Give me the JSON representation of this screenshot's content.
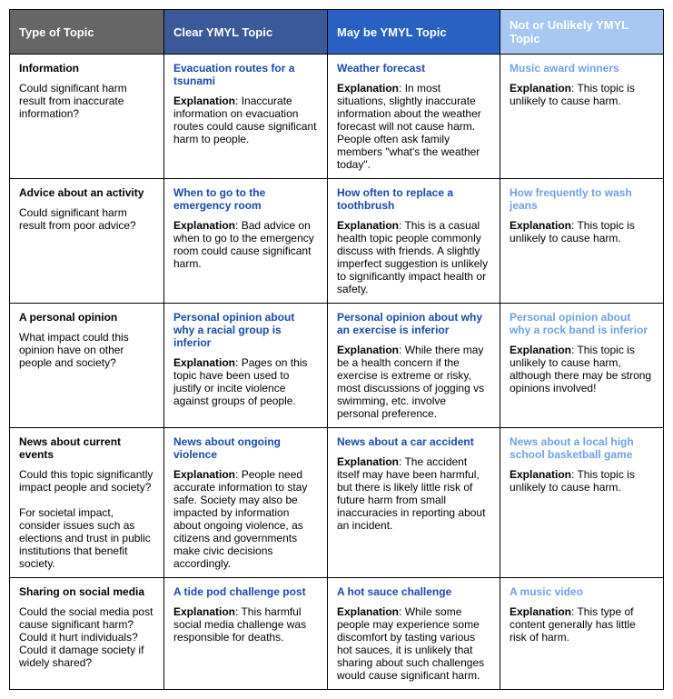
{
  "headers": {
    "col0": "Type of Topic",
    "col1": "Clear YMYL Topic",
    "col2": "May be YMYL Topic",
    "col3": "Not or Unlikely YMYL Topic"
  },
  "explanation_label": "Explanation",
  "rows": [
    {
      "type_title": "Information",
      "type_desc": "Could significant harm result from inaccurate information?",
      "clear": {
        "title": "Evacuation routes for a tsunami",
        "explanation": "Inaccurate information on evacuation routes could cause significant harm to people."
      },
      "maybe": {
        "title": "Weather forecast",
        "explanation": "In most situations, slightly inaccurate information about the weather forecast will not cause harm. People often ask family members \"what's the weather today\"."
      },
      "not": {
        "title": "Music award winners",
        "explanation": "This topic is unlikely to cause harm."
      }
    },
    {
      "type_title": "Advice about an activity",
      "type_desc": "Could significant harm result from poor advice?",
      "clear": {
        "title": "When to go to the emergency room",
        "explanation": "Bad advice on when to go to the emergency room could cause significant harm."
      },
      "maybe": {
        "title": "How often to replace a toothbrush",
        "explanation": "This is a casual health topic people commonly discuss with friends.  A slightly imperfect suggestion is unlikely to significantly impact health or safety."
      },
      "not": {
        "title": "How frequently to wash jeans",
        "explanation": "This topic is unlikely to cause harm."
      }
    },
    {
      "type_title": "A personal opinion",
      "type_desc": "What impact could this opinion have on other people and society?",
      "clear": {
        "title": "Personal opinion about why a racial group is inferior",
        "explanation": "Pages on this topic have been used to justify or incite violence against groups of people."
      },
      "maybe": {
        "title": "Personal opinion about why an exercise is inferior",
        "explanation": "While there may be a health concern if the exercise is extreme or risky, most discussions of jogging vs swimming, etc. involve personal preference."
      },
      "not": {
        "title": "Personal opinion about why a rock band is inferior",
        "explanation": "This topic is unlikely to cause harm, although there may be strong opinions involved!"
      }
    },
    {
      "type_title": "News about current events",
      "type_desc": "Could this topic significantly impact people and society?\n\nFor societal impact, consider issues such as elections and trust in public institutions that benefit society.",
      "clear": {
        "title": "News about ongoing violence",
        "explanation": "People need accurate information to stay safe. Society may also be impacted by information about ongoing violence, as citizens and governments make civic decisions accordingly."
      },
      "maybe": {
        "title": "News about a car accident",
        "explanation": "The accident itself may have been harmful, but there is likely little risk of future harm from small inaccuracies in reporting about an incident."
      },
      "not": {
        "title": "News about a local high school basketball game",
        "explanation": "This topic is unlikely to cause harm."
      }
    },
    {
      "type_title": "Sharing on social media",
      "type_desc": "Could the social media post cause significant harm? Could it hurt individuals? Could it damage society if widely shared?",
      "clear": {
        "title": "A tide pod challenge post",
        "explanation": "This harmful social media challenge was responsible for deaths."
      },
      "maybe": {
        "title": "A hot sauce challenge",
        "explanation": "While some people may experience some discomfort by tasting various hot sauces, it is unlikely that sharing about such challenges would cause significant harm."
      },
      "not": {
        "title": "A music video",
        "explanation": "This type of content generally has little risk of harm."
      }
    }
  ]
}
